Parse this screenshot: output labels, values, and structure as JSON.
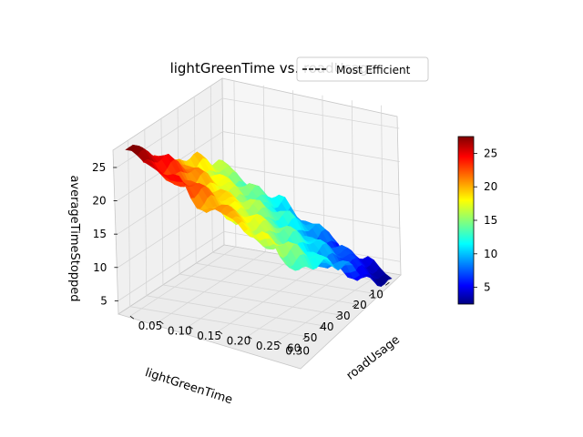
{
  "chart_data": {
    "type": "surface",
    "title": "lightGreenTime vs. roadUsage",
    "xlabel": "roadUsage",
    "ylabel": "lightGreenTime",
    "zlabel": "averageTimeStopped",
    "x_ticks": [
      "0.05",
      "0.10",
      "0.15",
      "0.20",
      "0.25",
      "0.30"
    ],
    "y_ticks": [
      "10",
      "20",
      "30",
      "40",
      "50",
      "60"
    ],
    "z_ticks": [
      "5",
      "10",
      "15",
      "20",
      "25"
    ],
    "xlim": [
      0.03,
      0.33
    ],
    "ylim": [
      3,
      67
    ],
    "zlim": [
      3,
      28
    ],
    "colormap": "jet",
    "colorbar": {
      "range": [
        2.5,
        27.5
      ],
      "ticks": [
        "5",
        "10",
        "15",
        "20",
        "25"
      ]
    },
    "legend": {
      "label": "Most Efficient",
      "placement": "top-right",
      "line_style": "dashed",
      "color": "#000000"
    },
    "surface": {
      "x": [
        0.04,
        0.32
      ],
      "y": [
        5,
        65
      ],
      "corner_values": {
        "x_min_y_min": 15,
        "x_min_y_max": 27.5,
        "x_max_y_min": 2.5,
        "x_max_y_max": 15
      },
      "shape": "approximately linear, increasing with lightGreenTime and decreasing with roadUsage"
    }
  },
  "colors": {
    "pane": "#f2f2f2",
    "grid": "#d9d9d9",
    "axis": "#000000"
  }
}
